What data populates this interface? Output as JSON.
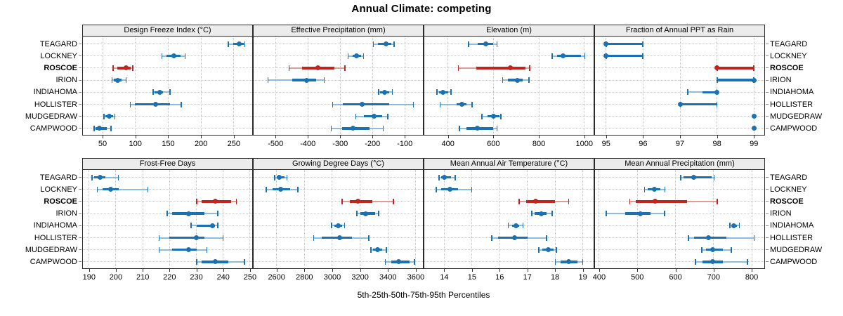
{
  "title": "Annual Climate: competing",
  "caption": "5th-25th-50th-75th-95th Percentiles",
  "sites": [
    "TEAGARD",
    "LOCKNEY",
    "ROSCOE",
    "IRION",
    "INDIAHOMA",
    "HOLLISTER",
    "MUDGEDRAW",
    "CAMPWOOD"
  ],
  "highlight_site": "ROSCOE",
  "percentiles": [
    5,
    25,
    50,
    75,
    95
  ],
  "colors": {
    "series": "#1c72b0",
    "series_light": "#8fbcdb",
    "highlight": "#c0251f",
    "highlight_light": "#de9d96",
    "strip_bg": "#ececec",
    "panel_border": "#2a2a2a",
    "grid": "#c9c9c9",
    "tick": "#333333"
  },
  "chart_data": [
    {
      "type": "dot-whisker",
      "title": "Design Freeze Index (°C)",
      "slug": "design-freeze-index",
      "row": 0,
      "col": 0,
      "xlim": [
        20,
        278
      ],
      "ticks": [
        50,
        100,
        150,
        200,
        250
      ],
      "series": {
        "TEAGARD": [
          241,
          249,
          258,
          265,
          267
        ],
        "LOCKNEY": [
          140,
          147,
          159,
          169,
          176
        ],
        "ROSCOE": [
          66,
          72,
          86,
          93,
          96
        ],
        "IRION": [
          64,
          67,
          73,
          79,
          86
        ],
        "INDIAHOMA": [
          127,
          129,
          137,
          142,
          153
        ],
        "HOLLISTER": [
          92,
          99,
          131,
          153,
          170
        ],
        "MUDGEDRAW": [
          52,
          54,
          60,
          66,
          69
        ],
        "CAMPWOOD": [
          37,
          39,
          45,
          56,
          63
        ]
      }
    },
    {
      "type": "dot-whisker",
      "title": "Effective Precipitation (mm)",
      "slug": "effective-precipitation",
      "row": 0,
      "col": 1,
      "xlim": [
        -568,
        -44
      ],
      "ticks": [
        -500,
        -400,
        -300,
        -200,
        -100
      ],
      "series": {
        "TEAGARD": [
          -198,
          -184,
          -158,
          -141,
          -133
        ],
        "LOCKNEY": [
          -276,
          -261,
          -249,
          -235,
          -227
        ],
        "ROSCOE": [
          -459,
          -417,
          -368,
          -317,
          -285
        ],
        "IRION": [
          -524,
          -449,
          -403,
          -374,
          -349
        ],
        "INDIAHOMA": [
          -181,
          -176,
          -163,
          -149,
          -138
        ],
        "HOLLISTER": [
          -324,
          -291,
          -232,
          -149,
          -73
        ],
        "MUDGEDRAW": [
          -252,
          -227,
          -195,
          -170,
          -152
        ],
        "CAMPWOOD": [
          -328,
          -295,
          -260,
          -209,
          -166
        ]
      }
    },
    {
      "type": "dot-whisker",
      "title": "Elevation (m)",
      "slug": "elevation",
      "row": 0,
      "col": 2,
      "xlim": [
        296,
        1041
      ],
      "ticks": [
        400,
        600,
        800,
        1000
      ],
      "series": {
        "TEAGARD": [
          490,
          530,
          567,
          600,
          617
        ],
        "LOCKNEY": [
          858,
          880,
          905,
          985,
          1003
        ],
        "ROSCOE": [
          445,
          525,
          675,
          740,
          760
        ],
        "IRION": [
          640,
          665,
          707,
          730,
          758
        ],
        "INDIAHOMA": [
          350,
          360,
          378,
          400,
          414
        ],
        "HOLLISTER": [
          365,
          437,
          460,
          482,
          507
        ],
        "MUDGEDRAW": [
          548,
          575,
          600,
          628,
          634
        ],
        "CAMPWOOD": [
          450,
          482,
          528,
          598,
          616
        ]
      }
    },
    {
      "type": "dot-whisker",
      "title": "Fraction of Annual PPT as Rain",
      "slug": "fraction-ppt-rain",
      "row": 0,
      "col": 3,
      "xlim": [
        94.7,
        99.28
      ],
      "ticks": [
        95,
        96,
        97,
        98,
        99
      ],
      "series": {
        "TEAGARD": [
          95,
          95,
          95,
          96,
          96
        ],
        "LOCKNEY": [
          95,
          95,
          95,
          96,
          96
        ],
        "ROSCOE": [
          98,
          98,
          98,
          99,
          99
        ],
        "IRION": [
          98,
          98,
          99,
          99,
          99
        ],
        "INDIAHOMA": [
          97.2,
          97.6,
          98,
          98,
          98
        ],
        "HOLLISTER": [
          97,
          97,
          97,
          98,
          98
        ],
        "MUDGEDRAW": [
          99,
          99,
          99,
          99,
          99
        ],
        "CAMPWOOD": [
          99,
          99,
          99,
          99,
          99
        ]
      }
    },
    {
      "type": "dot-whisker",
      "title": "Frost-Free Days",
      "slug": "frost-free-days",
      "row": 1,
      "col": 0,
      "xlim": [
        187.7,
        250.8
      ],
      "ticks": [
        190,
        200,
        210,
        220,
        230,
        240,
        250
      ],
      "series": {
        "TEAGARD": [
          191,
          192,
          194,
          196,
          201
        ],
        "LOCKNEY": [
          193,
          195,
          198,
          201,
          212
        ],
        "ROSCOE": [
          230,
          232,
          237,
          243,
          245
        ],
        "IRION": [
          219,
          221,
          227,
          233,
          238
        ],
        "INDIAHOMA": [
          228,
          230,
          236,
          237,
          238
        ],
        "HOLLISTER": [
          216,
          220,
          230,
          233,
          240
        ],
        "MUDGEDRAW": [
          216,
          221,
          227,
          230,
          234
        ],
        "CAMPWOOD": [
          230,
          232,
          237,
          242,
          248
        ]
      }
    },
    {
      "type": "dot-whisker",
      "title": "Growing Degree Days (°C)",
      "slug": "growing-degree-days",
      "row": 1,
      "col": 1,
      "xlim": [
        2435,
        3651
      ],
      "ticks": [
        2600,
        2800,
        3000,
        3200,
        3400,
        3600
      ],
      "series": {
        "TEAGARD": [
          2585,
          2600,
          2620,
          2655,
          2675
        ],
        "LOCKNEY": [
          2525,
          2570,
          2630,
          2695,
          2755
        ],
        "ROSCOE": [
          3070,
          3125,
          3185,
          3290,
          3440
        ],
        "IRION": [
          3175,
          3200,
          3240,
          3310,
          3335
        ],
        "INDIAHOMA": [
          2995,
          3015,
          3045,
          3070,
          3090
        ],
        "HOLLISTER": [
          2865,
          2925,
          3055,
          3140,
          3265
        ],
        "MUDGEDRAW": [
          3275,
          3295,
          3325,
          3360,
          3390
        ],
        "CAMPWOOD": [
          3380,
          3425,
          3475,
          3555,
          3590
        ]
      }
    },
    {
      "type": "dot-whisker",
      "title": "Mean Annual Air Temperature (°C)",
      "slug": "mean-annual-air-temperature",
      "row": 1,
      "col": 2,
      "xlim": [
        13.28,
        19.39
      ],
      "ticks": [
        14,
        15,
        16,
        17,
        18,
        19
      ],
      "series": {
        "TEAGARD": [
          13.8,
          13.9,
          14.0,
          14.25,
          14.4
        ],
        "LOCKNEY": [
          13.7,
          13.9,
          14.2,
          14.5,
          15.0
        ],
        "ROSCOE": [
          16.7,
          16.95,
          17.3,
          18.0,
          18.5
        ],
        "IRION": [
          17.15,
          17.25,
          17.5,
          17.7,
          17.9
        ],
        "INDIAHOMA": [
          16.3,
          16.45,
          16.6,
          16.7,
          16.85
        ],
        "HOLLISTER": [
          15.7,
          15.95,
          16.55,
          17.0,
          17.7
        ],
        "MUDGEDRAW": [
          17.4,
          17.55,
          17.75,
          17.95,
          18.05
        ],
        "CAMPWOOD": [
          18.0,
          18.2,
          18.5,
          18.8,
          19.0
        ]
      }
    },
    {
      "type": "dot-whisker",
      "title": "Mean Annual Precipitation (mm)",
      "slug": "mean-annual-precipitation",
      "row": 1,
      "col": 3,
      "xlim": [
        389,
        833
      ],
      "ticks": [
        400,
        500,
        600,
        700,
        800
      ],
      "series": {
        "TEAGARD": [
          613,
          622,
          648,
          695,
          702
        ],
        "LOCKNEY": [
          518,
          528,
          545,
          561,
          573
        ],
        "ROSCOE": [
          480,
          495,
          547,
          630,
          710
        ],
        "IRION": [
          418,
          468,
          508,
          534,
          572
        ],
        "INDIAHOMA": [
          742,
          749,
          753,
          761,
          768
        ],
        "HOLLISTER": [
          633,
          649,
          687,
          734,
          807
        ],
        "MUDGEDRAW": [
          668,
          680,
          697,
          725,
          747
        ],
        "CAMPWOOD": [
          652,
          670,
          698,
          725,
          789
        ]
      }
    }
  ]
}
